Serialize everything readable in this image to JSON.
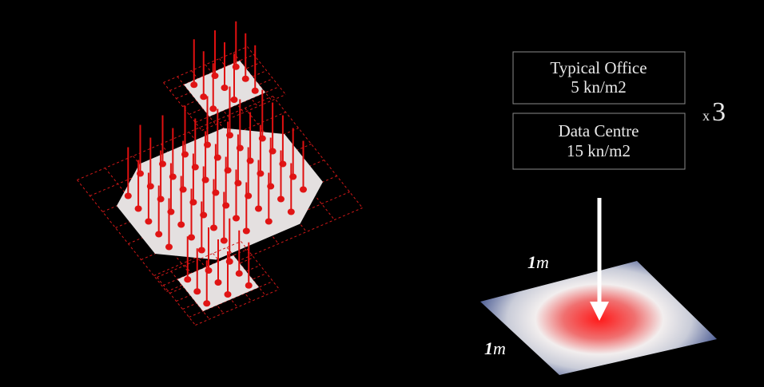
{
  "loads": [
    {
      "label": "Typical Office",
      "value": "5 kn/m2"
    },
    {
      "label": "Data Centre",
      "value": "15 kn/m2"
    }
  ],
  "multiplier": {
    "symbol": "x",
    "count": 3
  },
  "dimensions": [
    {
      "value": 1,
      "unit": "m"
    },
    {
      "value": 1,
      "unit": "m"
    }
  ]
}
